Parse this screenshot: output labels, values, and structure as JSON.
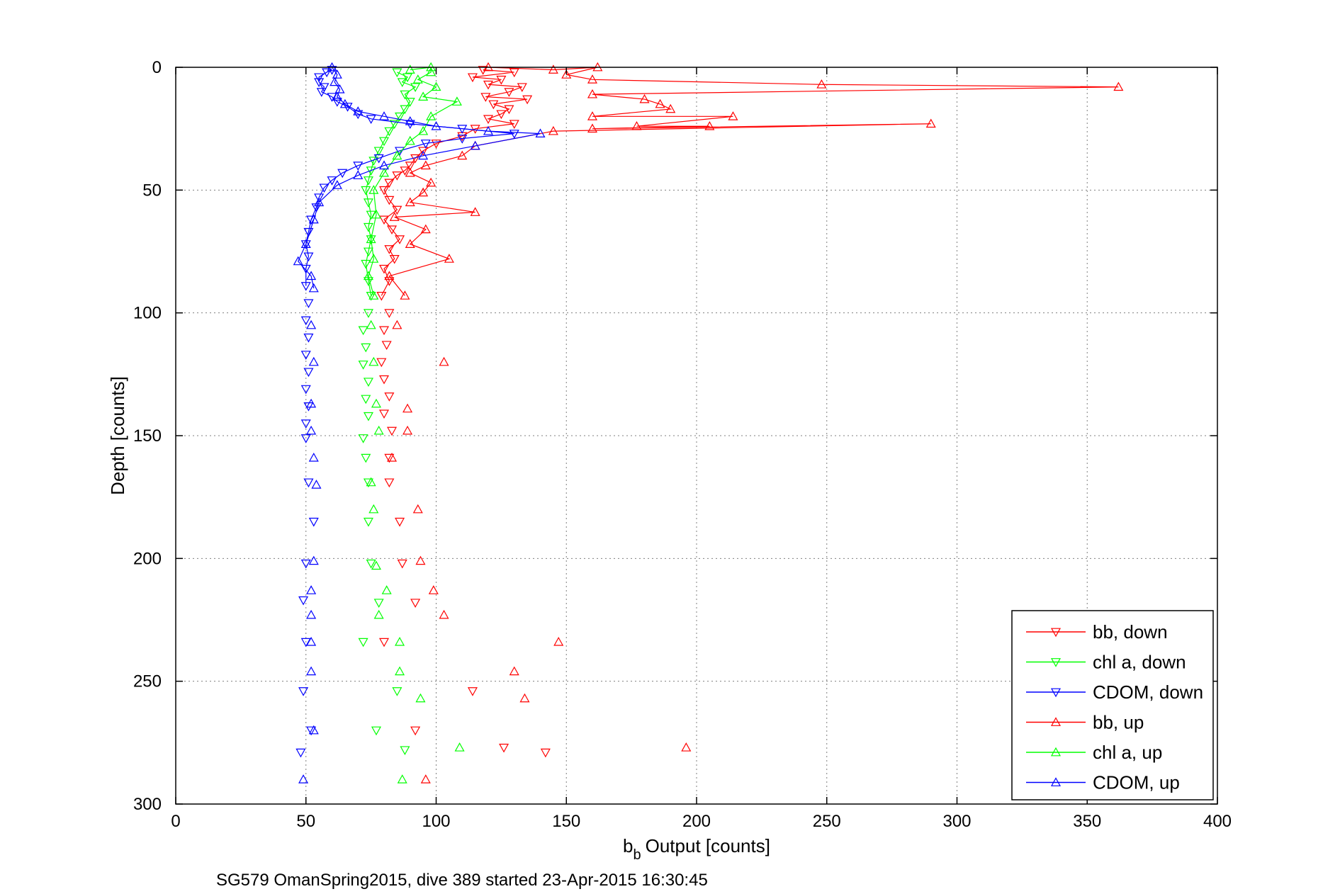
{
  "chart_data": {
    "type": "line",
    "xlabel": "Output [counts]",
    "xlabel_symbol": "b",
    "xlabel_subscript": "b",
    "ylabel": "Depth [counts]",
    "caption": "SG579 OmanSpring2015, dive 389 started 23-Apr-2015 16:30:45",
    "xlim": [
      0,
      400
    ],
    "ylim": [
      0,
      300
    ],
    "y_reversed": true,
    "grid": true,
    "legend_position": "bottom-right",
    "x_ticks": [
      "0",
      "50",
      "100",
      "150",
      "200",
      "250",
      "300",
      "350",
      "400"
    ],
    "y_ticks": [
      "0",
      "50",
      "100",
      "150",
      "200",
      "250",
      "300"
    ],
    "series": [
      {
        "name": "bb, down",
        "color": "#ff0000",
        "marker": "triangle-down",
        "connected": true,
        "points": [
          [
            118,
            1
          ],
          [
            130,
            2
          ],
          [
            114,
            4
          ],
          [
            125,
            5
          ],
          [
            120,
            7
          ],
          [
            133,
            8
          ],
          [
            128,
            10
          ],
          [
            119,
            12
          ],
          [
            135,
            13
          ],
          [
            122,
            15
          ],
          [
            128,
            17
          ],
          [
            125,
            19
          ],
          [
            120,
            21
          ],
          [
            130,
            23
          ],
          [
            115,
            25
          ],
          [
            110,
            28
          ],
          [
            100,
            31
          ],
          [
            95,
            34
          ],
          [
            92,
            37
          ],
          [
            90,
            40
          ],
          [
            88,
            42
          ],
          [
            85,
            44
          ],
          [
            82,
            47
          ],
          [
            80,
            50
          ],
          [
            82,
            54
          ],
          [
            85,
            58
          ],
          [
            80,
            62
          ],
          [
            83,
            66
          ],
          [
            86,
            70
          ],
          [
            82,
            74
          ],
          [
            84,
            78
          ],
          [
            80,
            82
          ],
          [
            82,
            87
          ],
          [
            79,
            93
          ],
          [
            82,
            100
          ],
          [
            80,
            107
          ],
          [
            81,
            113
          ],
          [
            79,
            120
          ],
          [
            80,
            127
          ],
          [
            82,
            134
          ],
          [
            80,
            141
          ],
          [
            83,
            148
          ],
          [
            82,
            159
          ],
          [
            82,
            169
          ],
          [
            86,
            185
          ],
          [
            87,
            202
          ],
          [
            92,
            218
          ],
          [
            80,
            234
          ],
          [
            114,
            254
          ],
          [
            92,
            270
          ],
          [
            126,
            277
          ],
          [
            142,
            279
          ]
        ]
      },
      {
        "name": "chl a, down",
        "color": "#00ff00",
        "marker": "triangle-down",
        "connected": true,
        "points": [
          [
            85,
            2
          ],
          [
            89,
            4
          ],
          [
            87,
            6
          ],
          [
            92,
            8
          ],
          [
            88,
            11
          ],
          [
            90,
            14
          ],
          [
            88,
            17
          ],
          [
            86,
            20
          ],
          [
            84,
            23
          ],
          [
            82,
            26
          ],
          [
            80,
            30
          ],
          [
            78,
            34
          ],
          [
            76,
            38
          ],
          [
            75,
            42
          ],
          [
            74,
            46
          ],
          [
            73,
            50
          ],
          [
            74,
            55
          ],
          [
            75,
            60
          ],
          [
            74,
            65
          ],
          [
            75,
            70
          ],
          [
            74,
            75
          ],
          [
            73,
            80
          ],
          [
            74,
            87
          ],
          [
            75,
            93
          ],
          [
            74,
            100
          ],
          [
            72,
            107
          ],
          [
            73,
            114
          ],
          [
            72,
            121
          ],
          [
            74,
            128
          ],
          [
            73,
            135
          ],
          [
            74,
            142
          ],
          [
            72,
            151
          ],
          [
            73,
            159
          ],
          [
            74,
            169
          ],
          [
            74,
            185
          ],
          [
            75,
            202
          ],
          [
            78,
            218
          ],
          [
            72,
            234
          ],
          [
            85,
            254
          ],
          [
            77,
            270
          ],
          [
            88,
            278
          ]
        ]
      },
      {
        "name": "CDOM, down",
        "color": "#0000ff",
        "marker": "triangle-down",
        "connected": true,
        "points": [
          [
            60,
            1
          ],
          [
            58,
            2
          ],
          [
            55,
            4
          ],
          [
            55,
            6
          ],
          [
            57,
            8
          ],
          [
            56,
            10
          ],
          [
            60,
            12
          ],
          [
            62,
            14
          ],
          [
            66,
            16
          ],
          [
            70,
            19
          ],
          [
            75,
            21
          ],
          [
            90,
            23
          ],
          [
            110,
            25
          ],
          [
            130,
            27
          ],
          [
            110,
            29
          ],
          [
            96,
            31
          ],
          [
            86,
            34
          ],
          [
            78,
            37
          ],
          [
            70,
            40
          ],
          [
            64,
            43
          ],
          [
            60,
            46
          ],
          [
            57,
            49
          ],
          [
            55,
            53
          ],
          [
            54,
            57
          ],
          [
            52,
            62
          ],
          [
            51,
            67
          ],
          [
            50,
            72
          ],
          [
            51,
            77
          ],
          [
            50,
            82
          ],
          [
            50,
            89
          ],
          [
            51,
            96
          ],
          [
            50,
            103
          ],
          [
            51,
            110
          ],
          [
            50,
            117
          ],
          [
            51,
            124
          ],
          [
            50,
            131
          ],
          [
            51,
            138
          ],
          [
            50,
            145
          ],
          [
            50,
            151
          ],
          [
            51,
            169
          ],
          [
            53,
            185
          ],
          [
            50,
            202
          ],
          [
            49,
            217
          ],
          [
            50,
            234
          ],
          [
            49,
            254
          ],
          [
            52,
            270
          ],
          [
            48,
            279
          ]
        ]
      },
      {
        "name": "bb, up",
        "color": "#ff0000",
        "marker": "triangle-up",
        "connected": true,
        "points": [
          [
            96,
            290
          ],
          [
            196,
            277
          ],
          [
            134,
            257
          ],
          [
            130,
            246
          ],
          [
            147,
            234
          ],
          [
            103,
            223
          ],
          [
            99,
            213
          ],
          [
            94,
            201
          ],
          [
            93,
            180
          ],
          [
            83,
            159
          ],
          [
            89,
            148
          ],
          [
            89,
            139
          ],
          [
            103,
            120
          ],
          [
            85,
            105
          ],
          [
            88,
            93
          ],
          [
            82,
            85
          ],
          [
            105,
            78
          ],
          [
            90,
            72
          ],
          [
            96,
            66
          ],
          [
            84,
            61
          ],
          [
            115,
            59
          ],
          [
            90,
            55
          ],
          [
            95,
            51
          ],
          [
            98,
            47
          ],
          [
            90,
            43
          ],
          [
            96,
            40
          ],
          [
            110,
            36
          ],
          [
            115,
            32
          ],
          [
            145,
            26
          ],
          [
            290,
            23
          ],
          [
            160,
            25
          ],
          [
            205,
            24
          ],
          [
            177,
            24
          ],
          [
            214,
            20
          ],
          [
            160,
            20
          ],
          [
            190,
            17
          ],
          [
            186,
            15
          ],
          [
            180,
            13
          ],
          [
            160,
            11
          ],
          [
            362,
            8
          ],
          [
            248,
            7
          ],
          [
            160,
            5
          ],
          [
            150,
            3
          ],
          [
            162,
            0
          ],
          [
            145,
            1
          ],
          [
            120,
            0
          ]
        ]
      },
      {
        "name": "chl a, up",
        "color": "#00ff00",
        "marker": "triangle-up",
        "connected": true,
        "points": [
          [
            87,
            290
          ],
          [
            109,
            277
          ],
          [
            94,
            257
          ],
          [
            86,
            246
          ],
          [
            86,
            234
          ],
          [
            78,
            223
          ],
          [
            81,
            213
          ],
          [
            77,
            203
          ],
          [
            76,
            180
          ],
          [
            75,
            169
          ],
          [
            78,
            148
          ],
          [
            77,
            137
          ],
          [
            76,
            120
          ],
          [
            75,
            105
          ],
          [
            76,
            93
          ],
          [
            74,
            85
          ],
          [
            76,
            78
          ],
          [
            75,
            70
          ],
          [
            77,
            60
          ],
          [
            76,
            50
          ],
          [
            80,
            43
          ],
          [
            85,
            36
          ],
          [
            90,
            30
          ],
          [
            95,
            26
          ],
          [
            98,
            20
          ],
          [
            108,
            14
          ],
          [
            95,
            12
          ],
          [
            100,
            8
          ],
          [
            93,
            5
          ],
          [
            98,
            2
          ],
          [
            98,
            0
          ],
          [
            90,
            1
          ]
        ]
      },
      {
        "name": "CDOM, up",
        "color": "#0000ff",
        "marker": "triangle-up",
        "connected": true,
        "points": [
          [
            49,
            290
          ],
          [
            53,
            270
          ],
          [
            52,
            246
          ],
          [
            52,
            234
          ],
          [
            52,
            223
          ],
          [
            52,
            213
          ],
          [
            53,
            201
          ],
          [
            54,
            170
          ],
          [
            53,
            159
          ],
          [
            52,
            148
          ],
          [
            52,
            137
          ],
          [
            53,
            120
          ],
          [
            52,
            105
          ],
          [
            53,
            90
          ],
          [
            52,
            85
          ],
          [
            47,
            79
          ],
          [
            50,
            72
          ],
          [
            53,
            62
          ],
          [
            55,
            55
          ],
          [
            62,
            48
          ],
          [
            70,
            44
          ],
          [
            80,
            40
          ],
          [
            95,
            36
          ],
          [
            115,
            32
          ],
          [
            140,
            27
          ],
          [
            120,
            26
          ],
          [
            100,
            24
          ],
          [
            90,
            22
          ],
          [
            80,
            20
          ],
          [
            70,
            18
          ],
          [
            65,
            15
          ],
          [
            62,
            12
          ],
          [
            63,
            9
          ],
          [
            61,
            6
          ],
          [
            62,
            3
          ],
          [
            60,
            0
          ]
        ]
      }
    ]
  }
}
